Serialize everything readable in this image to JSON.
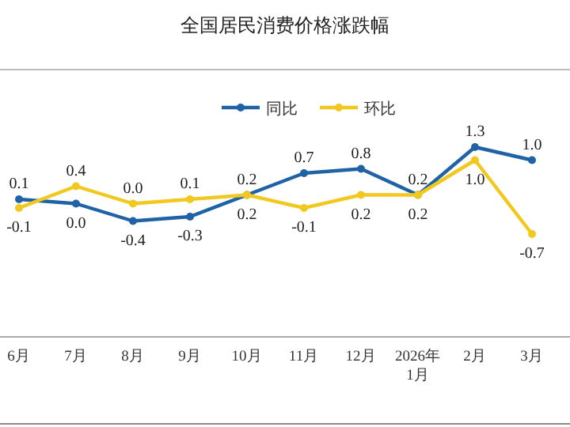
{
  "chart_data": {
    "type": "line",
    "title": "全国居民消费价格涨跌幅",
    "categories": [
      "6月",
      "7月",
      "8月",
      "9月",
      "10月",
      "11月",
      "12月",
      "2026年\n1月",
      "2月",
      "3月"
    ],
    "series": [
      {
        "name": "同比",
        "color": "#1f62a6",
        "values": [
          0.1,
          0.0,
          -0.4,
          -0.3,
          0.2,
          0.7,
          0.8,
          0.2,
          1.3,
          1.0
        ],
        "value_labels": [
          "0.1",
          "0.0",
          "-0.4",
          "-0.3",
          "0.2",
          "0.7",
          "0.8",
          "0.2",
          "1.3",
          "1.0"
        ]
      },
      {
        "name": "环比",
        "color": "#f2c81e",
        "values": [
          -0.1,
          0.4,
          0.0,
          0.1,
          0.2,
          -0.1,
          0.2,
          0.2,
          1.0,
          -0.7
        ],
        "value_labels": [
          "-0.1",
          "0.4",
          "0.0",
          "0.1",
          "0.2",
          "-0.1",
          "0.2",
          "0.2",
          "1.0",
          "-0.7"
        ]
      }
    ],
    "legend": "top",
    "marker": "circle",
    "grid": false
  }
}
